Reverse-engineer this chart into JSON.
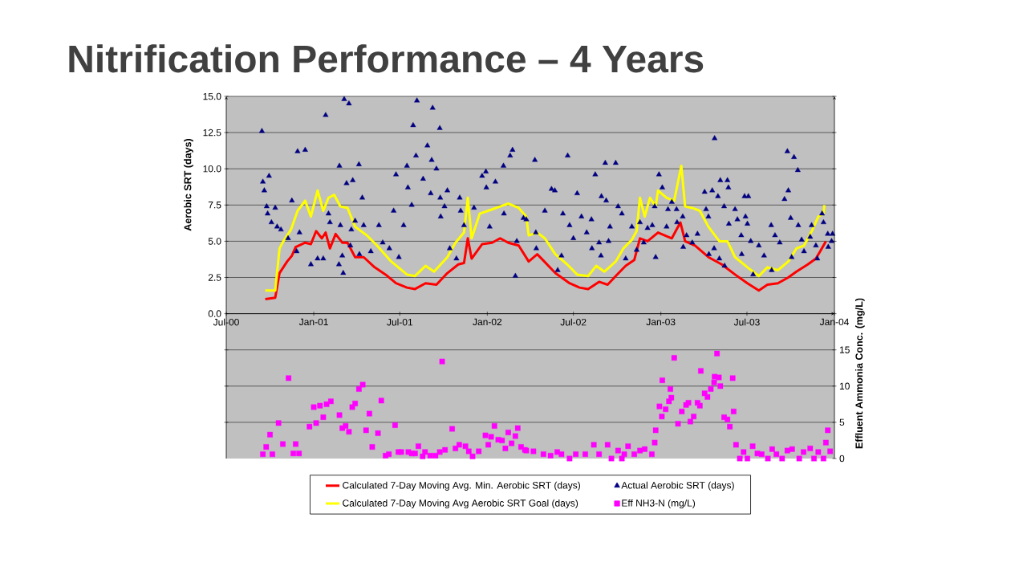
{
  "chart_data": {
    "type": "line",
    "title": "Nitrification Performance – 4 Years",
    "ylabel": "Aerobic SRT (days)",
    "y2label": "Effluent Ammonia Conc. (mg/L)",
    "xlim": [
      "2000-07-01",
      "2004-01-01"
    ],
    "xticks": [
      {
        "value": "2000-07-01",
        "label": "Jul-00"
      },
      {
        "value": "2001-01-01",
        "label": "Jan-01"
      },
      {
        "value": "2001-07-01",
        "label": "Jul-01"
      },
      {
        "value": "2002-01-01",
        "label": "Jan-02"
      },
      {
        "value": "2002-07-01",
        "label": "Jul-02"
      },
      {
        "value": "2003-01-01",
        "label": "Jan-03"
      },
      {
        "value": "2003-07-01",
        "label": "Jul-03"
      },
      {
        "value": "2004-01-01",
        "label": "Jan-04"
      }
    ],
    "ylim": [
      -10,
      15
    ],
    "yticks": [
      {
        "value": -7.5,
        "label": null
      },
      {
        "value": -5,
        "label": null
      },
      {
        "value": -2.5,
        "label": null
      },
      {
        "value": 0,
        "label": "0.0"
      },
      {
        "value": 2.5,
        "label": "2.5"
      },
      {
        "value": 5,
        "label": "5.0"
      },
      {
        "value": 7.5,
        "label": "7.5"
      },
      {
        "value": 10,
        "label": "10.0"
      },
      {
        "value": 12.5,
        "label": "12.5"
      },
      {
        "value": 15,
        "label": "15.0"
      }
    ],
    "y2lim": [
      0,
      50
    ],
    "y2ticks": [
      0,
      5,
      10,
      15,
      {
        "value": 20,
        "label": null
      },
      {
        "value": 25,
        "label": null
      },
      {
        "value": 30,
        "label": null
      },
      {
        "value": 35,
        "label": null
      },
      {
        "value": 40,
        "label": null
      },
      {
        "value": 45,
        "label": null
      },
      {
        "value": 50,
        "label": null
      }
    ],
    "grid": "y",
    "legend": "bottom",
    "series": [
      {
        "name": "Calculated 7-Day Moving Avg. Min. Aerobic SRT (days)",
        "marker": "none",
        "color": "#ff0000",
        "x": [
          "2000-09-21",
          "2000-10-12",
          "2000-10-21",
          "2000-11-06",
          "2000-11-16",
          "2000-11-24",
          "2000-12-14",
          "2000-12-26",
          "2001-01-06",
          "2001-01-18",
          "2001-01-26",
          "2001-02-04",
          "2001-02-16",
          "2001-03-02",
          "2001-03-13",
          "2001-03-29",
          "2001-04-16",
          "2001-05-09",
          "2001-06-01",
          "2001-06-23",
          "2001-07-16",
          "2001-08-02",
          "2001-08-24",
          "2001-09-16",
          "2001-10-09",
          "2001-11-01",
          "2001-11-13",
          "2001-11-21",
          "2001-11-29",
          "2001-12-21",
          "2002-01-11",
          "2002-01-28",
          "2002-02-14",
          "2002-03-08",
          "2002-03-29",
          "2002-04-16",
          "2002-04-28",
          "2002-05-24",
          "2002-06-23",
          "2002-07-14",
          "2002-08-01",
          "2002-08-24",
          "2002-09-11",
          "2002-09-28",
          "2002-10-19",
          "2002-11-06",
          "2002-11-18",
          "2002-12-04",
          "2002-12-26",
          "2003-01-24",
          "2003-02-11",
          "2003-02-21",
          "2003-03-14",
          "2003-04-11",
          "2003-05-09",
          "2003-06-06",
          "2003-07-02",
          "2003-07-26",
          "2003-08-13",
          "2003-09-04",
          "2003-09-26",
          "2003-10-13",
          "2003-11-06",
          "2003-11-23",
          "2003-12-02",
          "2003-12-14"
        ],
        "values": [
          1.0,
          1.1,
          2.8,
          3.6,
          4.0,
          4.6,
          4.9,
          4.8,
          5.7,
          5.2,
          5.6,
          4.5,
          5.5,
          4.9,
          4.9,
          3.9,
          3.9,
          3.2,
          2.7,
          2.1,
          1.8,
          1.7,
          2.1,
          2.0,
          2.8,
          3.4,
          3.5,
          5.2,
          3.8,
          4.8,
          4.9,
          5.2,
          4.9,
          4.7,
          3.6,
          4.1,
          3.7,
          2.8,
          2.1,
          1.8,
          1.7,
          2.2,
          2.0,
          2.6,
          3.3,
          3.7,
          5.2,
          5.0,
          5.6,
          5.2,
          6.3,
          5.0,
          4.7,
          3.9,
          3.4,
          2.7,
          2.1,
          1.6,
          2.0,
          2.1,
          2.5,
          2.9,
          3.4,
          3.8,
          4.3,
          5.0
        ]
      },
      {
        "name": "Actual Aerobic SRT (days)",
        "type": "scatter",
        "marker": "triangle",
        "color": "#000080",
        "x": [
          "2000-09-14",
          "2000-09-16",
          "2000-09-19",
          "2000-09-24",
          "2000-09-26",
          "2000-09-29",
          "2000-10-04",
          "2000-10-12",
          "2000-10-16",
          "2000-10-24",
          "2000-11-08",
          "2000-11-16",
          "2000-11-26",
          "2000-11-28",
          "2000-12-02",
          "2000-12-14",
          "2000-12-26",
          "2001-01-09",
          "2001-01-21",
          "2001-01-26",
          "2001-02-01",
          "2001-02-04",
          "2001-02-23",
          "2001-02-24",
          "2001-02-26",
          "2001-03-02",
          "2001-03-04",
          "2001-03-06",
          "2001-03-11",
          "2001-03-16",
          "2001-03-19",
          "2001-03-21",
          "2001-03-24",
          "2001-03-29",
          "2001-04-06",
          "2001-04-07",
          "2001-04-13",
          "2001-04-16",
          "2001-05-01",
          "2001-05-18",
          "2001-05-26",
          "2001-06-09",
          "2001-06-18",
          "2001-06-23",
          "2001-06-29",
          "2001-07-09",
          "2001-07-16",
          "2001-07-18",
          "2001-07-26",
          "2001-07-29",
          "2001-08-04",
          "2001-08-06",
          "2001-08-19",
          "2001-08-28",
          "2001-09-04",
          "2001-09-06",
          "2001-09-08",
          "2001-09-16",
          "2001-09-23",
          "2001-09-24",
          "2001-09-25",
          "2001-10-03",
          "2001-10-09",
          "2001-10-14",
          "2001-10-28",
          "2001-11-04",
          "2001-11-06",
          "2001-11-13",
          "2001-12-04",
          "2001-12-21",
          "2001-12-29",
          "2001-12-30",
          "2002-01-06",
          "2002-01-18",
          "2002-02-04",
          "2002-02-05",
          "2002-02-18",
          "2002-02-23",
          "2002-03-01",
          "2002-03-04",
          "2002-03-18",
          "2002-03-24",
          "2002-04-11",
          "2002-04-13",
          "2002-04-14",
          "2002-05-02",
          "2002-05-16",
          "2002-05-23",
          "2002-05-29",
          "2002-06-06",
          "2002-06-09",
          "2002-06-19",
          "2002-06-23",
          "2002-07-01",
          "2002-07-09",
          "2002-07-18",
          "2002-07-29",
          "2002-08-08",
          "2002-08-09",
          "2002-08-16",
          "2002-08-24",
          "2002-08-28",
          "2002-08-29",
          "2002-09-06",
          "2002-09-08",
          "2002-09-13",
          "2002-09-16",
          "2002-09-28",
          "2002-10-03",
          "2002-10-11",
          "2002-10-19",
          "2002-11-01",
          "2002-11-11",
          "2002-11-18",
          "2002-11-26",
          "2002-12-04",
          "2002-12-14",
          "2002-12-19",
          "2002-12-21",
          "2002-12-28",
          "2003-01-04",
          "2003-01-13",
          "2003-01-16",
          "2003-01-24",
          "2003-02-03",
          "2003-02-04",
          "2003-02-16",
          "2003-02-17",
          "2003-02-24",
          "2003-03-08",
          "2003-03-19",
          "2003-04-03",
          "2003-04-06",
          "2003-04-11",
          "2003-04-12",
          "2003-04-19",
          "2003-04-23",
          "2003-04-24",
          "2003-05-01",
          "2003-05-04",
          "2003-05-06",
          "2003-05-14",
          "2003-05-15",
          "2003-05-21",
          "2003-05-23",
          "2003-05-24",
          "2003-06-06",
          "2003-06-11",
          "2003-06-19",
          "2003-06-20",
          "2003-06-26",
          "2003-06-28",
          "2003-07-02",
          "2003-07-04",
          "2003-07-09",
          "2003-07-14",
          "2003-07-26",
          "2003-08-06",
          "2003-08-21",
          "2003-08-22",
          "2003-08-29",
          "2003-09-08",
          "2003-09-18",
          "2003-09-24",
          "2003-09-26",
          "2003-10-01",
          "2003-10-03",
          "2003-10-08",
          "2003-10-16",
          "2003-10-17",
          "2003-10-24",
          "2003-10-29",
          "2003-11-11",
          "2003-11-14",
          "2003-11-23",
          "2003-11-26",
          "2003-12-06",
          "2003-12-09",
          "2003-12-18",
          "2003-12-19",
          "2003-12-26",
          "2003-12-28"
        ],
        "values": [
          12.6,
          9.1,
          8.5,
          7.4,
          6.9,
          9.5,
          6.3,
          7.3,
          6.0,
          5.8,
          5.2,
          7.8,
          4.3,
          11.2,
          5.6,
          11.3,
          3.4,
          3.8,
          3.8,
          13.7,
          6.9,
          6.3,
          3.4,
          10.2,
          6.1,
          4.0,
          2.8,
          14.8,
          9.0,
          14.5,
          4.7,
          5.8,
          9.2,
          6.4,
          10.3,
          4.1,
          8.0,
          6.1,
          4.3,
          6.1,
          4.9,
          4.5,
          7.1,
          9.6,
          3.9,
          6.1,
          10.2,
          8.7,
          7.5,
          13.0,
          10.9,
          14.7,
          9.3,
          11.6,
          8.3,
          10.6,
          14.2,
          10.0,
          12.8,
          8.0,
          6.7,
          7.4,
          8.5,
          4.5,
          3.8,
          8.0,
          7.1,
          6.1,
          7.3,
          9.5,
          9.8,
          8.7,
          6.0,
          9.1,
          10.2,
          6.9,
          10.9,
          11.3,
          2.6,
          5.0,
          6.6,
          6.5,
          10.6,
          5.6,
          4.5,
          7.1,
          8.6,
          8.5,
          3.0,
          4.0,
          6.9,
          10.9,
          6.1,
          5.2,
          8.3,
          6.7,
          5.6,
          6.5,
          4.5,
          9.6,
          4.9,
          4.0,
          8.1,
          10.4,
          7.8,
          5.0,
          6.0,
          10.4,
          7.4,
          6.9,
          3.8,
          6.0,
          4.4,
          6.3,
          4.9,
          5.9,
          6.1,
          7.4,
          3.9,
          9.6,
          8.7,
          6.0,
          7.2,
          7.7,
          7.2,
          6.3,
          6.7,
          4.6,
          5.4,
          4.9,
          5.5,
          8.4,
          7.2,
          6.7,
          4.1,
          8.5,
          4.5,
          12.1,
          8.1,
          3.8,
          9.2,
          7.4,
          3.3,
          9.2,
          8.7,
          6.2,
          7.2,
          6.5,
          5.4,
          4.1,
          8.1,
          6.7,
          6.2,
          8.1,
          5.0,
          2.7,
          4.7,
          4.0,
          6.1,
          3.0,
          5.4,
          4.9,
          7.9,
          11.2,
          8.5,
          6.6,
          3.9,
          10.8,
          9.9,
          6.1,
          5.1,
          4.3,
          5.3,
          6.1,
          4.7,
          3.8,
          6.9,
          6.3,
          5.5,
          4.6,
          5.0,
          5.5
        ]
      },
      {
        "name": "Calculated 7-Day Moving Avg Aerobic SRT Goal (days)",
        "marker": "none",
        "color": "#ffff00",
        "x": [
          "2000-09-21",
          "2000-10-12",
          "2000-10-21",
          "2000-10-29",
          "2000-11-14",
          "2000-11-28",
          "2000-12-14",
          "2000-12-26",
          "2001-01-09",
          "2001-01-21",
          "2001-02-01",
          "2001-02-13",
          "2001-02-26",
          "2001-03-13",
          "2001-03-29",
          "2001-04-23",
          "2001-05-14",
          "2001-06-13",
          "2001-07-16",
          "2001-08-02",
          "2001-08-24",
          "2001-09-11",
          "2001-10-09",
          "2001-10-26",
          "2001-11-13",
          "2001-11-21",
          "2001-11-29",
          "2001-12-16",
          "2002-01-11",
          "2002-01-28",
          "2002-02-14",
          "2002-03-08",
          "2002-03-24",
          "2002-03-29",
          "2002-04-16",
          "2002-05-02",
          "2002-05-24",
          "2002-06-18",
          "2002-07-09",
          "2002-08-01",
          "2002-08-18",
          "2002-09-04",
          "2002-09-28",
          "2002-10-14",
          "2002-11-01",
          "2002-11-11",
          "2002-11-18",
          "2002-11-28",
          "2002-12-09",
          "2002-12-21",
          "2002-12-26",
          "2003-01-13",
          "2003-01-29",
          "2003-02-13",
          "2003-02-21",
          "2003-03-08",
          "2003-03-24",
          "2003-04-11",
          "2003-05-04",
          "2003-05-21",
          "2003-06-06",
          "2003-07-02",
          "2003-07-26",
          "2003-08-13",
          "2003-09-04",
          "2003-09-26",
          "2003-10-13",
          "2003-10-29",
          "2003-11-16",
          "2003-11-28",
          "2003-12-09",
          "2003-12-11"
        ],
        "values": [
          1.6,
          1.6,
          4.5,
          5.0,
          5.8,
          7.1,
          7.8,
          6.7,
          8.5,
          7.1,
          8.0,
          8.2,
          7.4,
          7.3,
          6.0,
          5.4,
          4.7,
          3.6,
          2.7,
          2.6,
          3.3,
          2.9,
          3.9,
          4.9,
          5.6,
          8.0,
          5.2,
          6.9,
          7.2,
          7.4,
          7.6,
          7.3,
          6.7,
          5.4,
          5.6,
          5.2,
          4.1,
          3.4,
          2.7,
          2.6,
          3.3,
          2.9,
          3.6,
          4.5,
          5.1,
          5.7,
          8.0,
          6.7,
          8.0,
          7.4,
          8.5,
          8.0,
          7.8,
          10.2,
          7.4,
          7.3,
          7.1,
          6.0,
          5.0,
          5.0,
          3.9,
          3.2,
          2.6,
          3.2,
          3.0,
          3.6,
          4.5,
          4.7,
          5.8,
          6.7,
          6.9,
          7.5
        ]
      },
      {
        "name": "Eff NH3-N (mg/L)",
        "type": "scatter",
        "marker": "square",
        "color": "#ff00ff",
        "axis": "y2",
        "x": [
          "2000-09-16",
          "2000-09-23",
          "2000-10-01",
          "2000-10-06",
          "2000-10-19",
          "2000-10-28",
          "2000-11-09",
          "2000-11-19",
          "2000-11-24",
          "2000-12-01",
          "2000-12-23",
          "2001-01-01",
          "2001-01-06",
          "2001-01-14",
          "2001-01-21",
          "2001-01-28",
          "2001-02-06",
          "2001-02-24",
          "2001-03-02",
          "2001-03-09",
          "2001-03-16",
          "2001-03-23",
          "2001-03-29",
          "2001-04-06",
          "2001-04-14",
          "2001-04-21",
          "2001-04-28",
          "2001-05-04",
          "2001-05-16",
          "2001-05-23",
          "2001-06-01",
          "2001-06-08",
          "2001-06-21",
          "2001-06-28",
          "2001-07-04",
          "2001-07-19",
          "2001-07-26",
          "2001-08-02",
          "2001-08-09",
          "2001-08-18",
          "2001-08-23",
          "2001-09-03",
          "2001-09-14",
          "2001-09-23",
          "2001-09-28",
          "2001-10-04",
          "2001-10-19",
          "2001-10-26",
          "2001-11-03",
          "2001-11-16",
          "2001-11-23",
          "2001-12-01",
          "2001-12-14",
          "2001-12-28",
          "2002-01-03",
          "2002-01-09",
          "2002-01-16",
          "2002-01-24",
          "2002-02-01",
          "2002-02-08",
          "2002-02-14",
          "2002-02-21",
          "2002-03-01",
          "2002-03-06",
          "2002-03-13",
          "2002-03-21",
          "2002-03-24",
          "2002-04-08",
          "2002-04-29",
          "2002-05-14",
          "2002-05-28",
          "2002-06-06",
          "2002-06-23",
          "2002-07-06",
          "2002-07-26",
          "2002-08-13",
          "2002-08-24",
          "2002-09-11",
          "2002-09-19",
          "2002-10-03",
          "2002-10-11",
          "2002-10-16",
          "2002-10-24",
          "2002-11-06",
          "2002-11-18",
          "2002-11-28",
          "2002-12-13",
          "2002-12-19",
          "2002-12-21",
          "2002-12-29",
          "2003-01-03",
          "2003-01-04",
          "2003-01-11",
          "2003-01-18",
          "2003-01-21",
          "2003-01-23",
          "2003-01-29",
          "2003-02-06",
          "2003-02-14",
          "2003-02-23",
          "2003-02-28",
          "2003-03-04",
          "2003-03-11",
          "2003-03-19",
          "2003-03-24",
          "2003-03-26",
          "2003-04-03",
          "2003-04-09",
          "2003-04-16",
          "2003-04-23",
          "2003-04-24",
          "2003-04-29",
          "2003-05-03",
          "2003-05-06",
          "2003-05-14",
          "2003-05-21",
          "2003-05-26",
          "2003-06-01",
          "2003-06-03",
          "2003-06-08",
          "2003-06-16",
          "2003-06-24",
          "2003-07-02",
          "2003-07-13",
          "2003-07-23",
          "2003-08-01",
          "2003-08-14",
          "2003-08-23",
          "2003-09-01",
          "2003-09-13",
          "2003-09-24",
          "2003-10-04",
          "2003-10-19",
          "2003-10-28",
          "2003-11-11",
          "2003-11-19",
          "2003-11-28",
          "2003-12-09",
          "2003-12-14",
          "2003-12-18",
          "2003-12-23"
        ],
        "values": [
          0.6,
          1.6,
          3.3,
          0.6,
          4.9,
          2.0,
          11.1,
          0.7,
          2.0,
          0.7,
          4.4,
          7.1,
          4.9,
          7.3,
          5.7,
          7.5,
          7.9,
          6.0,
          4.2,
          4.5,
          3.7,
          7.1,
          7.6,
          9.6,
          10.2,
          3.9,
          6.2,
          1.6,
          3.5,
          8.0,
          0.4,
          0.6,
          4.6,
          0.9,
          0.9,
          0.9,
          0.7,
          0.7,
          1.7,
          0.3,
          0.9,
          0.4,
          0.4,
          0.9,
          13.4,
          1.2,
          4.1,
          1.4,
          1.9,
          1.7,
          1.0,
          0.3,
          1.0,
          3.2,
          1.9,
          3.0,
          4.5,
          2.6,
          2.5,
          1.4,
          3.6,
          2.1,
          3.1,
          4.2,
          1.6,
          1.2,
          1.1,
          1.0,
          0.6,
          0.4,
          0.9,
          0.6,
          0.0,
          0.6,
          0.6,
          1.9,
          0.6,
          1.9,
          0.0,
          1.1,
          0.0,
          0.6,
          1.7,
          0.6,
          1.1,
          1.3,
          0.6,
          2.2,
          3.9,
          7.2,
          5.8,
          10.8,
          6.8,
          7.9,
          9.6,
          8.4,
          13.9,
          4.8,
          6.5,
          7.4,
          7.7,
          5.1,
          5.8,
          7.7,
          7.3,
          12.1,
          9.0,
          8.5,
          9.6,
          10.5,
          11.3,
          14.5,
          11.2,
          10.0,
          5.7,
          5.4,
          4.4,
          11.1,
          6.5,
          1.9,
          0.0,
          0.9,
          0.0,
          1.7,
          0.7,
          0.6,
          0.0,
          1.3,
          0.6,
          0.0,
          1.1,
          1.3,
          0.0,
          0.9,
          1.4,
          0.0,
          0.9,
          0.0,
          2.2,
          3.9,
          1.0
        ]
      }
    ]
  }
}
